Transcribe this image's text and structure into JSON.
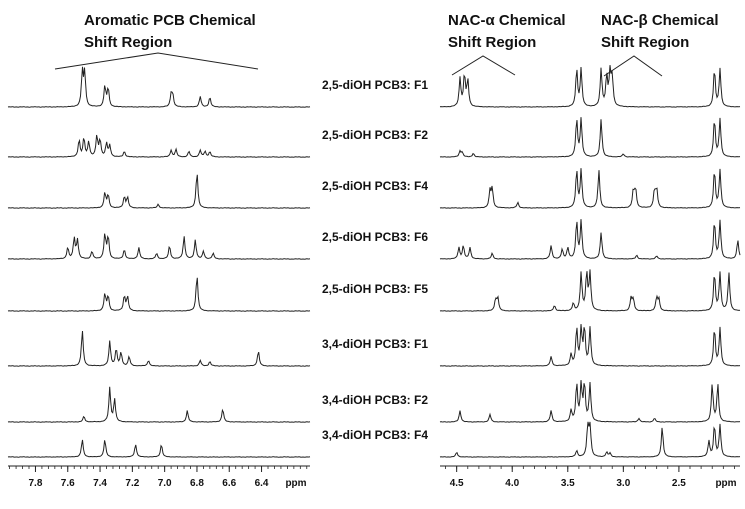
{
  "chart_data": {
    "type": "line",
    "description_note": "",
    "left_panel": {
      "region_label": [
        "Aromatic PCB Chemical",
        "Shift Region"
      ],
      "xlabel": "ppm",
      "xlim": [
        7.97,
        6.1
      ],
      "ticks": [
        7.8,
        7.6,
        7.4,
        7.2,
        7.0,
        6.8,
        6.6,
        6.4
      ],
      "tick_labels": [
        "7.8",
        "7.6",
        "7.4",
        "7.2",
        "7.0",
        "6.8",
        "6.6",
        "6.4"
      ]
    },
    "right_panel": {
      "region_labels": [
        [
          "NAC-α Chemical",
          "Shift Region"
        ],
        [
          "NAC-β Chemical",
          "Shift Region"
        ]
      ],
      "xlabel": "ppm",
      "xlim": [
        4.65,
        1.95
      ],
      "ticks": [
        4.5,
        4.0,
        3.5,
        3.0,
        2.5
      ],
      "tick_labels": [
        "4.5",
        "4.0",
        "3.5",
        "3.0",
        "2.5"
      ]
    },
    "series": [
      {
        "name": "2,5-diOH PCB3: F1",
        "left": [
          [
            7.51,
            0.92
          ],
          [
            7.495,
            0.9
          ],
          [
            7.37,
            0.55
          ],
          [
            7.35,
            0.5
          ],
          [
            6.96,
            0.32
          ],
          [
            6.95,
            0.3
          ],
          [
            6.78,
            0.28
          ],
          [
            6.72,
            0.26
          ]
        ],
        "right": [
          [
            4.47,
            0.75
          ],
          [
            4.43,
            0.85
          ],
          [
            4.4,
            0.7
          ],
          [
            3.42,
            1.0
          ],
          [
            3.38,
            1.0
          ],
          [
            3.2,
            1.0
          ],
          [
            3.15,
            0.8
          ],
          [
            3.12,
            0.95
          ],
          [
            3.1,
            0.75
          ],
          [
            2.18,
            1.0
          ],
          [
            2.13,
            1.0
          ]
        ]
      },
      {
        "name": "2,5-diOH PCB3: F2",
        "left": [
          [
            7.53,
            0.45
          ],
          [
            7.5,
            0.5
          ],
          [
            7.47,
            0.4
          ],
          [
            7.42,
            0.55
          ],
          [
            7.4,
            0.45
          ],
          [
            7.36,
            0.35
          ],
          [
            7.34,
            0.3
          ],
          [
            7.25,
            0.15
          ],
          [
            6.96,
            0.18
          ],
          [
            6.93,
            0.2
          ],
          [
            6.85,
            0.15
          ],
          [
            6.78,
            0.18
          ],
          [
            6.75,
            0.15
          ],
          [
            6.72,
            0.14
          ]
        ],
        "right": [
          [
            4.47,
            0.15
          ],
          [
            4.45,
            0.12
          ],
          [
            4.35,
            0.1
          ],
          [
            3.42,
            1.0
          ],
          [
            3.38,
            1.0
          ],
          [
            3.2,
            1.0
          ],
          [
            3.0,
            0.08
          ],
          [
            2.18,
            1.0
          ],
          [
            2.13,
            1.0
          ]
        ]
      },
      {
        "name": "2,5-diOH PCB3: F4",
        "left": [
          [
            7.37,
            0.4
          ],
          [
            7.35,
            0.35
          ],
          [
            7.25,
            0.3
          ],
          [
            7.23,
            0.28
          ],
          [
            7.04,
            0.1
          ],
          [
            6.8,
            0.95
          ]
        ],
        "right": [
          [
            4.2,
            0.45
          ],
          [
            4.18,
            0.5
          ],
          [
            3.95,
            0.15
          ],
          [
            3.42,
            1.0
          ],
          [
            3.38,
            1.0
          ],
          [
            3.22,
            1.0
          ],
          [
            2.91,
            0.45
          ],
          [
            2.89,
            0.5
          ],
          [
            2.72,
            0.45
          ],
          [
            2.7,
            0.5
          ],
          [
            2.18,
            1.0
          ],
          [
            2.13,
            1.0
          ]
        ]
      },
      {
        "name": "2,5-diOH PCB3: F6",
        "left": [
          [
            7.6,
            0.3
          ],
          [
            7.56,
            0.55
          ],
          [
            7.54,
            0.5
          ],
          [
            7.45,
            0.2
          ],
          [
            7.37,
            0.65
          ],
          [
            7.35,
            0.6
          ],
          [
            7.25,
            0.25
          ],
          [
            7.16,
            0.3
          ],
          [
            7.05,
            0.15
          ],
          [
            6.97,
            0.35
          ],
          [
            6.88,
            0.6
          ],
          [
            6.81,
            0.5
          ],
          [
            6.76,
            0.2
          ],
          [
            6.7,
            0.15
          ]
        ],
        "right": [
          [
            4.48,
            0.3
          ],
          [
            4.44,
            0.35
          ],
          [
            4.38,
            0.3
          ],
          [
            4.18,
            0.15
          ],
          [
            3.65,
            0.35
          ],
          [
            3.55,
            0.25
          ],
          [
            3.5,
            0.3
          ],
          [
            3.42,
            1.0
          ],
          [
            3.38,
            1.0
          ],
          [
            3.2,
            0.7
          ],
          [
            2.88,
            0.1
          ],
          [
            2.7,
            0.08
          ],
          [
            2.18,
            1.0
          ],
          [
            2.13,
            1.0
          ],
          [
            1.97,
            0.5
          ]
        ]
      },
      {
        "name": "2,5-diOH PCB3: F5",
        "left": [
          [
            7.37,
            0.45
          ],
          [
            7.35,
            0.4
          ],
          [
            7.25,
            0.4
          ],
          [
            7.23,
            0.38
          ],
          [
            6.8,
            0.95
          ]
        ],
        "right": [
          [
            4.15,
            0.3
          ],
          [
            4.13,
            0.35
          ],
          [
            3.62,
            0.15
          ],
          [
            3.45,
            0.2
          ],
          [
            3.38,
            1.0
          ],
          [
            3.33,
            1.0
          ],
          [
            3.3,
            1.0
          ],
          [
            2.93,
            0.35
          ],
          [
            2.91,
            0.3
          ],
          [
            2.7,
            0.35
          ],
          [
            2.68,
            0.3
          ],
          [
            2.18,
            1.0
          ],
          [
            2.13,
            1.0
          ],
          [
            2.05,
            1.0
          ]
        ]
      },
      {
        "name": "3,4-diOH PCB3: F1",
        "left": [
          [
            7.51,
            0.95
          ],
          [
            7.34,
            0.65
          ],
          [
            7.3,
            0.45
          ],
          [
            7.27,
            0.35
          ],
          [
            7.22,
            0.25
          ],
          [
            7.1,
            0.15
          ],
          [
            6.78,
            0.15
          ],
          [
            6.72,
            0.12
          ],
          [
            6.42,
            0.4
          ]
        ],
        "right": [
          [
            3.65,
            0.25
          ],
          [
            3.47,
            0.3
          ],
          [
            3.42,
            1.0
          ],
          [
            3.38,
            1.0
          ],
          [
            3.35,
            1.0
          ],
          [
            3.3,
            1.0
          ],
          [
            2.18,
            1.0
          ],
          [
            2.13,
            1.0
          ]
        ]
      },
      {
        "name": "3,4-diOH PCB3: F2",
        "left": [
          [
            7.5,
            0.15
          ],
          [
            7.34,
            0.9
          ],
          [
            7.31,
            0.6
          ],
          [
            6.86,
            0.3
          ],
          [
            6.64,
            0.35
          ]
        ],
        "right": [
          [
            4.47,
            0.3
          ],
          [
            4.2,
            0.2
          ],
          [
            3.65,
            0.3
          ],
          [
            3.47,
            0.3
          ],
          [
            3.42,
            1.0
          ],
          [
            3.38,
            1.0
          ],
          [
            3.35,
            1.0
          ],
          [
            3.3,
            1.0
          ],
          [
            2.86,
            0.1
          ],
          [
            2.72,
            0.1
          ],
          [
            2.2,
            1.0
          ],
          [
            2.15,
            1.0
          ]
        ]
      },
      {
        "name": "3,4-diOH PCB3: F4",
        "left": [
          [
            7.51,
            0.55
          ],
          [
            7.37,
            0.55
          ],
          [
            7.18,
            0.4
          ],
          [
            7.02,
            0.4
          ]
        ],
        "right": [
          [
            4.5,
            0.15
          ],
          [
            3.42,
            0.2
          ],
          [
            3.32,
            1.0
          ],
          [
            3.3,
            1.0
          ],
          [
            3.15,
            0.15
          ],
          [
            3.12,
            0.12
          ],
          [
            2.65,
            0.95
          ],
          [
            2.23,
            0.5
          ],
          [
            2.18,
            1.0
          ],
          [
            2.13,
            1.0
          ]
        ]
      }
    ]
  }
}
